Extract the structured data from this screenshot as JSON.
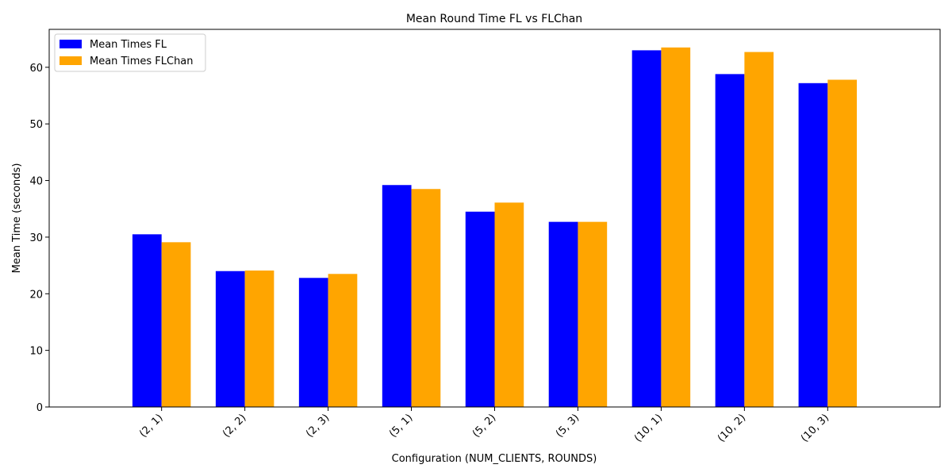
{
  "chart_data": {
    "type": "bar",
    "title": "Mean Round Time FL vs FLChan",
    "xlabel": "Configuration (NUM_CLIENTS, ROUNDS)",
    "ylabel": "Mean Time (seconds)",
    "categories": [
      "(2, 1)",
      "(2, 2)",
      "(2, 3)",
      "(5, 1)",
      "(5, 2)",
      "(5, 3)",
      "(10, 1)",
      "(10, 2)",
      "(10, 3)"
    ],
    "series": [
      {
        "name": "Mean Times FL",
        "color": "#0000ff",
        "values": [
          30.5,
          24.0,
          22.8,
          39.2,
          34.5,
          32.7,
          63.0,
          58.8,
          57.2
        ]
      },
      {
        "name": "Mean Times FLChan",
        "color": "#ffa500",
        "values": [
          29.1,
          24.1,
          23.5,
          38.5,
          36.1,
          32.7,
          63.5,
          62.7,
          57.8
        ]
      }
    ],
    "ylim": [
      0,
      66.7
    ],
    "yticks": [
      0,
      10,
      20,
      30,
      40,
      50,
      60
    ],
    "legend_position": "top-left",
    "grid": false
  }
}
